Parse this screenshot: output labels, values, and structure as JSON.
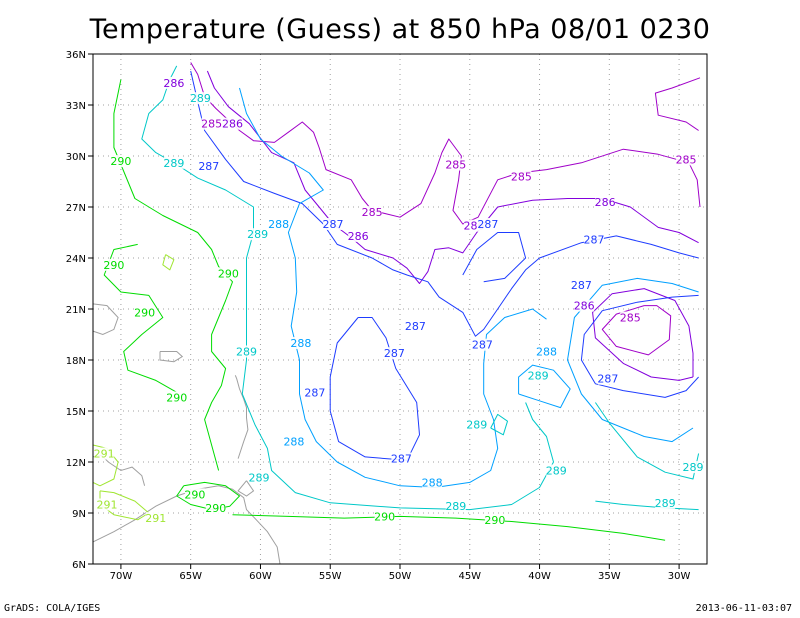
{
  "title": "Temperature (Guess) at 850 hPa 08/01 0230",
  "footer_left": "GrADS: COLA/IGES",
  "footer_right": "2013-06-11-03:07",
  "map": {
    "lon_range": [
      -72,
      -28
    ],
    "lat_range": [
      6,
      36
    ],
    "x_ticks": [
      {
        "lon": -70,
        "label": "70W"
      },
      {
        "lon": -65,
        "label": "65W"
      },
      {
        "lon": -60,
        "label": "60W"
      },
      {
        "lon": -55,
        "label": "55W"
      },
      {
        "lon": -50,
        "label": "50W"
      },
      {
        "lon": -45,
        "label": "45W"
      },
      {
        "lon": -40,
        "label": "40W"
      },
      {
        "lon": -35,
        "label": "35W"
      },
      {
        "lon": -30,
        "label": "30W"
      }
    ],
    "y_ticks": [
      {
        "lat": 36,
        "label": "36N"
      },
      {
        "lat": 33,
        "label": "33N"
      },
      {
        "lat": 30,
        "label": "30N"
      },
      {
        "lat": 27,
        "label": "27N"
      },
      {
        "lat": 24,
        "label": "24N"
      },
      {
        "lat": 21,
        "label": "21N"
      },
      {
        "lat": 18,
        "label": "18N"
      },
      {
        "lat": 15,
        "label": "15N"
      },
      {
        "lat": 12,
        "label": "12N"
      },
      {
        "lat": 9,
        "label": "9N"
      },
      {
        "lat": 6,
        "label": "6N"
      }
    ],
    "grid": true,
    "levels": [
      {
        "value": 285,
        "color": "#a000c8"
      },
      {
        "value": 286,
        "color": "#8200dc"
      },
      {
        "value": 287,
        "color": "#1e3cff"
      },
      {
        "value": 288,
        "color": "#00a0ff"
      },
      {
        "value": 289,
        "color": "#00c8c8"
      },
      {
        "value": 290,
        "color": "#00dc00"
      },
      {
        "value": 291,
        "color": "#a0e632"
      }
    ],
    "labels": [
      {
        "text": "285",
        "lon": -52.0,
        "lat": 26.7,
        "level": 285
      },
      {
        "text": "285",
        "lon": -63.5,
        "lat": 31.9,
        "level": 285
      },
      {
        "text": "285",
        "lon": -46.0,
        "lat": 29.5,
        "level": 285
      },
      {
        "text": "285",
        "lon": -41.3,
        "lat": 28.8,
        "level": 285
      },
      {
        "text": "285",
        "lon": -29.5,
        "lat": 29.8,
        "level": 285
      },
      {
        "text": "285",
        "lon": -33.5,
        "lat": 20.5,
        "level": 285
      },
      {
        "text": "286",
        "lon": -66.2,
        "lat": 34.3,
        "level": 286
      },
      {
        "text": "286",
        "lon": -62.0,
        "lat": 31.9,
        "level": 286
      },
      {
        "text": "286",
        "lon": -53.0,
        "lat": 25.3,
        "level": 286
      },
      {
        "text": "286",
        "lon": -44.7,
        "lat": 25.9,
        "level": 286
      },
      {
        "text": "286",
        "lon": -35.3,
        "lat": 27.3,
        "level": 286
      },
      {
        "text": "286",
        "lon": -36.8,
        "lat": 21.2,
        "level": 286
      },
      {
        "text": "287",
        "lon": -63.7,
        "lat": 29.4,
        "level": 287
      },
      {
        "text": "287",
        "lon": -54.8,
        "lat": 26.0,
        "level": 287
      },
      {
        "text": "287",
        "lon": -43.7,
        "lat": 26.0,
        "level": 287
      },
      {
        "text": "287",
        "lon": -36.1,
        "lat": 25.1,
        "level": 287
      },
      {
        "text": "287",
        "lon": -37.0,
        "lat": 22.4,
        "level": 287
      },
      {
        "text": "287",
        "lon": -48.9,
        "lat": 20.0,
        "level": 287
      },
      {
        "text": "287",
        "lon": -50.4,
        "lat": 18.4,
        "level": 287
      },
      {
        "text": "287",
        "lon": -44.1,
        "lat": 18.9,
        "level": 287
      },
      {
        "text": "287",
        "lon": -35.1,
        "lat": 16.9,
        "level": 287
      },
      {
        "text": "287",
        "lon": -56.1,
        "lat": 16.1,
        "level": 287
      },
      {
        "text": "287",
        "lon": -49.9,
        "lat": 12.2,
        "level": 287
      },
      {
        "text": "288",
        "lon": -58.7,
        "lat": 26.0,
        "level": 288
      },
      {
        "text": "288",
        "lon": -57.1,
        "lat": 19.0,
        "level": 288
      },
      {
        "text": "288",
        "lon": -57.6,
        "lat": 13.2,
        "level": 288
      },
      {
        "text": "288",
        "lon": -47.7,
        "lat": 10.8,
        "level": 288
      },
      {
        "text": "288",
        "lon": -39.5,
        "lat": 18.5,
        "level": 288
      },
      {
        "text": "289",
        "lon": -64.3,
        "lat": 33.4,
        "level": 289
      },
      {
        "text": "289",
        "lon": -66.2,
        "lat": 29.6,
        "level": 289
      },
      {
        "text": "289",
        "lon": -60.2,
        "lat": 25.4,
        "level": 289
      },
      {
        "text": "289",
        "lon": -61.0,
        "lat": 18.5,
        "level": 289
      },
      {
        "text": "289",
        "lon": -60.1,
        "lat": 11.1,
        "level": 289
      },
      {
        "text": "289",
        "lon": -44.5,
        "lat": 14.2,
        "level": 289
      },
      {
        "text": "289",
        "lon": -40.1,
        "lat": 17.1,
        "level": 289
      },
      {
        "text": "289",
        "lon": -38.8,
        "lat": 11.5,
        "level": 289
      },
      {
        "text": "289",
        "lon": -29.0,
        "lat": 11.7,
        "level": 289
      },
      {
        "text": "289",
        "lon": -46.0,
        "lat": 9.4,
        "level": 289
      },
      {
        "text": "289",
        "lon": -31.0,
        "lat": 9.6,
        "level": 289
      },
      {
        "text": "290",
        "lon": -70.0,
        "lat": 29.7,
        "level": 290
      },
      {
        "text": "290",
        "lon": -70.5,
        "lat": 23.6,
        "level": 290
      },
      {
        "text": "290",
        "lon": -62.3,
        "lat": 23.1,
        "level": 290
      },
      {
        "text": "290",
        "lon": -68.3,
        "lat": 20.8,
        "level": 290
      },
      {
        "text": "290",
        "lon": -66.0,
        "lat": 15.8,
        "level": 290
      },
      {
        "text": "290",
        "lon": -64.7,
        "lat": 10.1,
        "level": 290
      },
      {
        "text": "290",
        "lon": -63.2,
        "lat": 9.3,
        "level": 290
      },
      {
        "text": "290",
        "lon": -51.1,
        "lat": 8.8,
        "level": 290
      },
      {
        "text": "290",
        "lon": -43.2,
        "lat": 8.6,
        "level": 290
      },
      {
        "text": "291",
        "lon": -71.2,
        "lat": 12.5,
        "level": 291
      },
      {
        "text": "291",
        "lon": -71.0,
        "lat": 9.5,
        "level": 291
      },
      {
        "text": "291",
        "lon": -67.5,
        "lat": 8.7,
        "level": 291
      }
    ]
  }
}
